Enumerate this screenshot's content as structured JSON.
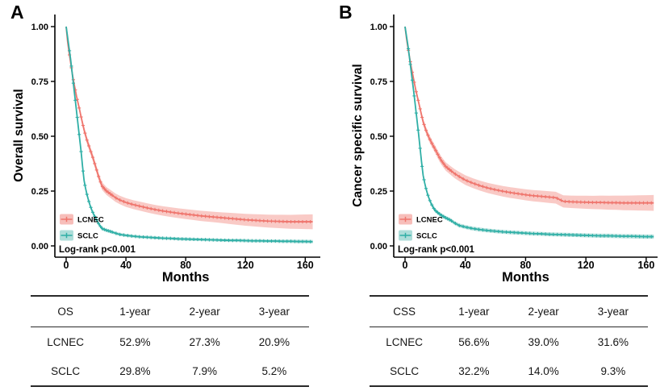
{
  "chart_data": [
    {
      "type": "line",
      "panel_label": "A",
      "title": "",
      "ylabel": "Overall survival",
      "xlabel": "Months",
      "annotation": "Log-rank p<0.001",
      "xlim": [
        0,
        168
      ],
      "ylim": [
        0,
        1
      ],
      "xticks": [
        0,
        40,
        80,
        120,
        160
      ],
      "yticks": [
        0,
        0.25,
        0.5,
        0.75,
        1
      ],
      "ytick_labels": [
        "0.00",
        "0.25",
        "0.50",
        "0.75",
        "1.00"
      ],
      "grid": false,
      "legend_position": "inside-bottom-left",
      "series": [
        {
          "name": "LCNEC",
          "color": "#ef756d",
          "band_color": "#f6b3ae",
          "x": [
            0,
            1,
            2,
            3,
            4,
            5,
            6,
            7,
            8,
            9,
            10,
            11,
            12,
            14,
            16,
            18,
            20,
            22,
            24,
            27,
            30,
            33,
            36,
            40,
            45,
            50,
            55,
            60,
            65,
            70,
            75,
            80,
            85,
            90,
            95,
            100,
            105,
            110,
            115,
            120,
            125,
            130,
            135,
            140,
            145,
            150,
            155,
            160,
            165
          ],
          "y": [
            1.0,
            0.93,
            0.88,
            0.835,
            0.79,
            0.75,
            0.715,
            0.68,
            0.65,
            0.62,
            0.588,
            0.558,
            0.529,
            0.48,
            0.44,
            0.4,
            0.355,
            0.31,
            0.273,
            0.25,
            0.235,
            0.22,
            0.209,
            0.198,
            0.188,
            0.18,
            0.172,
            0.165,
            0.159,
            0.154,
            0.149,
            0.145,
            0.141,
            0.137,
            0.134,
            0.131,
            0.128,
            0.125,
            0.122,
            0.119,
            0.117,
            0.115,
            0.113,
            0.112,
            0.111,
            0.11,
            0.11,
            0.11,
            0.11
          ],
          "band": {
            "x": [
              0,
              12,
              40,
              100,
              165
            ],
            "hw": [
              0.008,
              0.016,
              0.02,
              0.024,
              0.034
            ]
          }
        },
        {
          "name": "SCLC",
          "color": "#2fafa6",
          "band_color": "#9fd7d2",
          "x": [
            0,
            1,
            2,
            3,
            4,
            5,
            6,
            7,
            8,
            9,
            10,
            11,
            12,
            13,
            14,
            15,
            16,
            17,
            18,
            19,
            20,
            22,
            24,
            27,
            30,
            33,
            36,
            40,
            45,
            50,
            55,
            60,
            65,
            70,
            75,
            80,
            85,
            90,
            95,
            100,
            105,
            110,
            115,
            120,
            125,
            130,
            135,
            140,
            145,
            150,
            155,
            160,
            165
          ],
          "y": [
            1.0,
            0.95,
            0.9,
            0.85,
            0.79,
            0.73,
            0.67,
            0.61,
            0.55,
            0.49,
            0.43,
            0.36,
            0.298,
            0.262,
            0.232,
            0.207,
            0.185,
            0.166,
            0.15,
            0.136,
            0.124,
            0.098,
            0.079,
            0.071,
            0.065,
            0.058,
            0.052,
            0.048,
            0.044,
            0.041,
            0.039,
            0.037,
            0.035,
            0.034,
            0.032,
            0.031,
            0.03,
            0.029,
            0.028,
            0.027,
            0.026,
            0.025,
            0.025,
            0.024,
            0.023,
            0.023,
            0.022,
            0.022,
            0.021,
            0.021,
            0.02,
            0.02,
            0.019
          ],
          "band": {
            "x": [
              0,
              12,
              40,
              100,
              165
            ],
            "hw": [
              0.004,
              0.008,
              0.007,
              0.007,
              0.008
            ]
          }
        }
      ],
      "table": {
        "headers": [
          "OS",
          "1-year",
          "2-year",
          "3-year"
        ],
        "rows": [
          [
            "LCNEC",
            "52.9%",
            "27.3%",
            "20.9%"
          ],
          [
            "SCLC",
            "29.8%",
            "7.9%",
            "5.2%"
          ]
        ]
      }
    },
    {
      "type": "line",
      "panel_label": "B",
      "title": "",
      "ylabel": "Cancer specific survival",
      "xlabel": "Months",
      "annotation": "Log-rank p<0.001",
      "xlim": [
        0,
        168
      ],
      "ylim": [
        0,
        1
      ],
      "xticks": [
        0,
        40,
        80,
        120,
        160
      ],
      "yticks": [
        0,
        0.25,
        0.5,
        0.75,
        1
      ],
      "ytick_labels": [
        "0.00",
        "0.25",
        "0.50",
        "0.75",
        "1.00"
      ],
      "grid": false,
      "legend_position": "inside-bottom-left",
      "series": [
        {
          "name": "LCNEC",
          "color": "#ef756d",
          "band_color": "#f6b3ae",
          "x": [
            0,
            1,
            2,
            3,
            4,
            5,
            6,
            7,
            8,
            9,
            10,
            11,
            12,
            14,
            16,
            18,
            20,
            22,
            24,
            27,
            30,
            33,
            36,
            40,
            45,
            50,
            55,
            60,
            65,
            70,
            75,
            80,
            85,
            90,
            95,
            100,
            105,
            110,
            115,
            120,
            125,
            130,
            135,
            140,
            145,
            150,
            155,
            160,
            165
          ],
          "y": [
            1.0,
            0.945,
            0.9,
            0.86,
            0.82,
            0.785,
            0.75,
            0.715,
            0.685,
            0.655,
            0.625,
            0.595,
            0.566,
            0.525,
            0.492,
            0.465,
            0.44,
            0.414,
            0.39,
            0.362,
            0.345,
            0.329,
            0.316,
            0.3,
            0.286,
            0.274,
            0.264,
            0.256,
            0.249,
            0.243,
            0.238,
            0.233,
            0.229,
            0.226,
            0.223,
            0.22,
            0.203,
            0.201,
            0.2,
            0.199,
            0.198,
            0.198,
            0.197,
            0.197,
            0.196,
            0.196,
            0.196,
            0.196,
            0.196
          ],
          "band": {
            "x": [
              0,
              12,
              40,
              100,
              165
            ],
            "hw": [
              0.008,
              0.016,
              0.022,
              0.027,
              0.036
            ]
          }
        },
        {
          "name": "SCLC",
          "color": "#2fafa6",
          "band_color": "#9fd7d2",
          "x": [
            0,
            1,
            2,
            3,
            4,
            5,
            6,
            7,
            8,
            9,
            10,
            11,
            12,
            13,
            14,
            15,
            16,
            17,
            18,
            19,
            20,
            22,
            24,
            27,
            30,
            33,
            36,
            40,
            45,
            50,
            55,
            60,
            65,
            70,
            75,
            80,
            85,
            90,
            95,
            100,
            105,
            110,
            115,
            120,
            125,
            130,
            135,
            140,
            145,
            150,
            155,
            160,
            165
          ],
          "y": [
            1.0,
            0.955,
            0.91,
            0.855,
            0.8,
            0.745,
            0.69,
            0.63,
            0.57,
            0.51,
            0.445,
            0.38,
            0.322,
            0.288,
            0.259,
            0.235,
            0.215,
            0.198,
            0.184,
            0.172,
            0.162,
            0.15,
            0.14,
            0.128,
            0.118,
            0.104,
            0.093,
            0.086,
            0.079,
            0.074,
            0.07,
            0.067,
            0.064,
            0.062,
            0.06,
            0.058,
            0.056,
            0.055,
            0.053,
            0.052,
            0.051,
            0.05,
            0.049,
            0.048,
            0.047,
            0.046,
            0.046,
            0.045,
            0.044,
            0.044,
            0.043,
            0.042,
            0.042
          ],
          "band": {
            "x": [
              0,
              12,
              40,
              100,
              165
            ],
            "hw": [
              0.004,
              0.009,
              0.009,
              0.009,
              0.01
            ]
          }
        }
      ],
      "table": {
        "headers": [
          "CSS",
          "1-year",
          "2-year",
          "3-year"
        ],
        "rows": [
          [
            "LCNEC",
            "56.6%",
            "39.0%",
            "31.6%"
          ],
          [
            "SCLC",
            "32.2%",
            "14.0%",
            "9.3%"
          ]
        ]
      }
    }
  ]
}
